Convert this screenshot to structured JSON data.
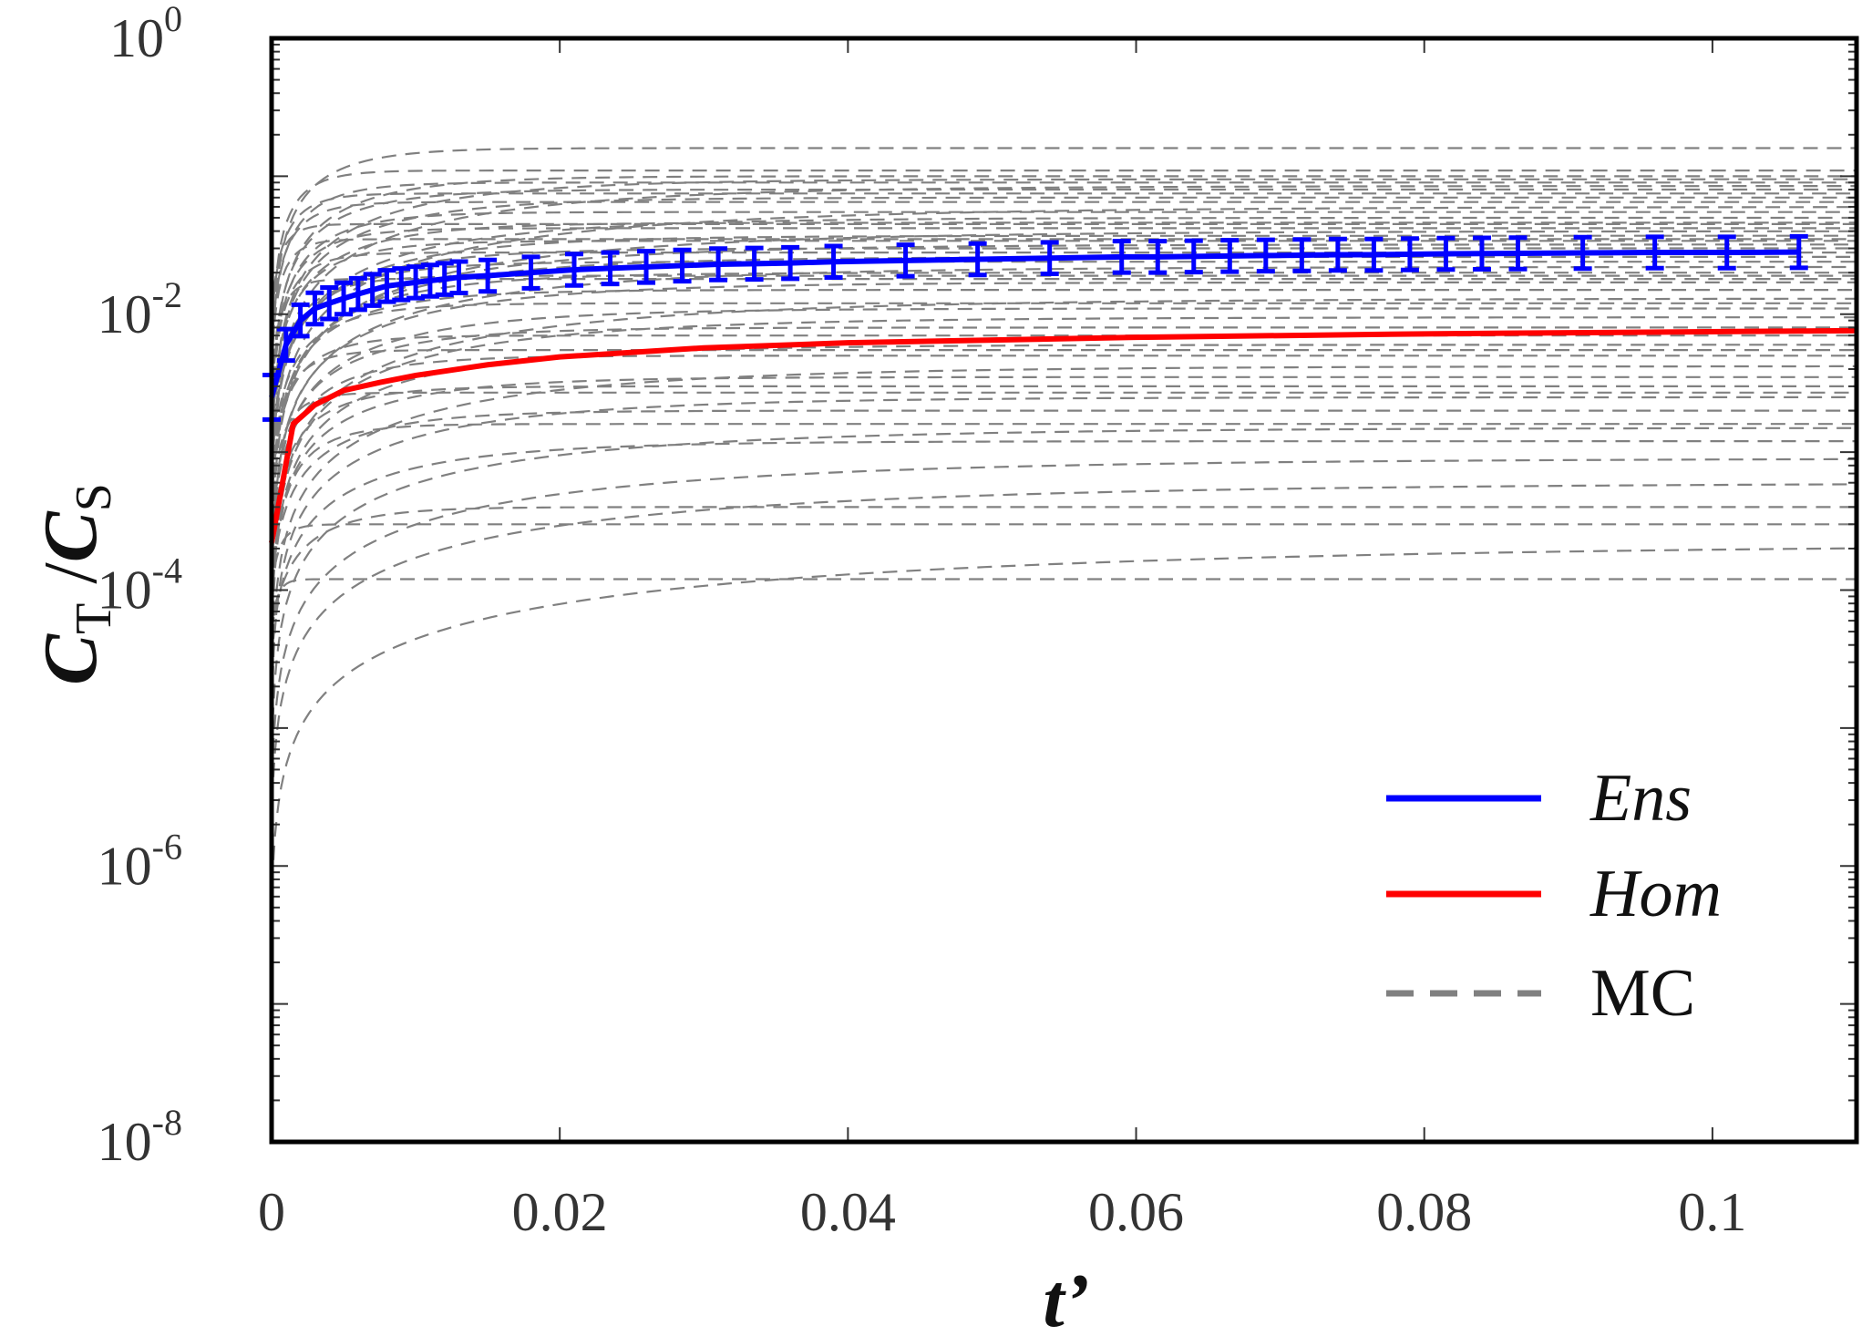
{
  "chart_data": {
    "type": "line",
    "title": "",
    "xlabel": "t’",
    "ylabel": {
      "main": "C",
      "sub1": "T",
      "sep": " /",
      "main2": "C",
      "sub2": "S"
    },
    "xlim": [
      0,
      0.11
    ],
    "ylim": [
      1e-08,
      1
    ],
    "yscale": "log",
    "x_ticks": [
      0,
      0.02,
      0.04,
      0.06,
      0.08,
      0.1
    ],
    "x_tick_labels": [
      "0",
      "0.02",
      "0.04",
      "0.06",
      "0.08",
      "0.1"
    ],
    "y_ticks": [
      {
        "base": "10",
        "exp": "0",
        "value": 1
      },
      {
        "base": "10",
        "exp": "-2",
        "value": 0.01
      },
      {
        "base": "10",
        "exp": "-4",
        "value": 0.0001
      },
      {
        "base": "10",
        "exp": "-6",
        "value": 1e-06
      },
      {
        "base": "10",
        "exp": "-8",
        "value": 1e-08
      }
    ],
    "legend_position": "bottom-right",
    "legend": [
      {
        "label": "Ens",
        "color": "#0000ff",
        "style": "solid"
      },
      {
        "label": "Hom",
        "color": "#ff0000",
        "style": "solid"
      },
      {
        "label": "MC",
        "color": "#808080",
        "style": "dashed"
      }
    ],
    "series": [
      {
        "name": "Ens",
        "color": "#0000ff",
        "error_factor": 1.3,
        "x": [
          0,
          0.001,
          0.002,
          0.003,
          0.004,
          0.005,
          0.006,
          0.007,
          0.008,
          0.009,
          0.01,
          0.011,
          0.012,
          0.013,
          0.015,
          0.018,
          0.021,
          0.0235,
          0.026,
          0.0285,
          0.031,
          0.0335,
          0.036,
          0.039,
          0.044,
          0.049,
          0.054,
          0.059,
          0.0615,
          0.064,
          0.0665,
          0.069,
          0.0715,
          0.074,
          0.0765,
          0.079,
          0.0815,
          0.084,
          0.0865,
          0.091,
          0.096,
          0.101,
          0.106
        ],
        "y": [
          0.0025,
          0.006,
          0.009,
          0.011,
          0.012,
          0.013,
          0.014,
          0.015,
          0.016,
          0.0165,
          0.017,
          0.0175,
          0.018,
          0.0185,
          0.019,
          0.02,
          0.021,
          0.0215,
          0.022,
          0.0225,
          0.023,
          0.0232,
          0.0235,
          0.024,
          0.0245,
          0.025,
          0.0255,
          0.026,
          0.026,
          0.0262,
          0.0264,
          0.0266,
          0.0268,
          0.027,
          0.027,
          0.0272,
          0.0274,
          0.0275,
          0.0276,
          0.0278,
          0.028,
          0.028,
          0.0282
        ]
      },
      {
        "name": "Hom",
        "color": "#ff0000",
        "x": [
          0,
          0.0015,
          0.003,
          0.005,
          0.0075,
          0.01,
          0.015,
          0.02,
          0.03,
          0.04,
          0.06,
          0.08,
          0.11
        ],
        "y": [
          0.00022,
          0.0016,
          0.0022,
          0.0028,
          0.0032,
          0.0036,
          0.0043,
          0.0049,
          0.0057,
          0.0062,
          0.0068,
          0.0072,
          0.0076
        ]
      },
      {
        "name": "MC",
        "color": "#808080",
        "model": "y = y0 + (ymax - y0) * (1 - exp(-t / tau))",
        "curves": [
          [
            0.16,
            0.004,
            0.002
          ],
          [
            0.11,
            0.002,
            0.003
          ],
          [
            0.1,
            0.006,
            0.001
          ],
          [
            0.095,
            0.01,
            0.0005
          ],
          [
            0.09,
            0.003,
            0.004
          ],
          [
            0.085,
            0.015,
            0.0003
          ],
          [
            0.08,
            0.005,
            0.002
          ],
          [
            0.07,
            0.008,
            0.0008
          ],
          [
            0.065,
            0.002,
            0.005
          ],
          [
            0.06,
            0.02,
            0.0002
          ],
          [
            0.055,
            0.004,
            0.001
          ],
          [
            0.05,
            0.012,
            0.0004
          ],
          [
            0.046,
            0.006,
            0.0015
          ],
          [
            0.042,
            0.003,
            0.002
          ],
          [
            0.04,
            0.018,
            0.0001
          ],
          [
            0.037,
            0.009,
            0.0006
          ],
          [
            0.034,
            0.004,
            0.0009
          ],
          [
            0.032,
            0.014,
            0.0003
          ],
          [
            0.03,
            0.007,
            0.0007
          ],
          [
            0.028,
            0.002,
            0.001
          ],
          [
            0.026,
            0.011,
            0.0002
          ],
          [
            0.024,
            0.005,
            0.0005
          ],
          [
            0.022,
            0.016,
            8e-05
          ],
          [
            0.02,
            0.008,
            0.0003
          ],
          [
            0.019,
            0.003,
            0.0008
          ],
          [
            0.017,
            0.012,
            0.0001
          ],
          [
            0.015,
            0.006,
            0.0004
          ],
          [
            0.013,
            0.02,
            5e-05
          ],
          [
            0.012,
            0.004,
            0.0006
          ],
          [
            0.011,
            0.01,
            0.0002
          ],
          [
            0.0095,
            0.015,
            3e-05
          ],
          [
            0.008,
            0.007,
            0.0002
          ],
          [
            0.007,
            0.003,
            0.0004
          ],
          [
            0.006,
            0.012,
            5e-05
          ],
          [
            0.005,
            0.005,
            0.0002
          ],
          [
            0.0042,
            0.018,
            2e-05
          ],
          [
            0.0035,
            0.008,
            0.0001
          ],
          [
            0.003,
            0.004,
            0.0002
          ],
          [
            0.0025,
            0.014,
            1e-05
          ],
          [
            0.002,
            0.006,
            0.0001
          ],
          [
            0.0015,
            0.02,
            5e-06
          ],
          [
            0.0012,
            0.01,
            3e-05
          ],
          [
            0.0009,
            0.025,
            3e-06
          ],
          [
            0.0006,
            0.03,
            2e-06
          ],
          [
            0.0004,
            0.004,
            5e-05
          ],
          [
            0.0003,
            0.0008,
            0.0001
          ],
          [
            0.00012,
            0.0005,
            5e-05
          ],
          [
            0.00022,
            0.045,
            5e-07
          ],
          [
            0.018,
            0.001,
            0.002
          ],
          [
            0.045,
            0.001,
            0.01
          ],
          [
            0.0027,
            0.0015,
            0.0003
          ],
          [
            0.0055,
            0.002,
            0.0006
          ],
          [
            0.035,
            0.0012,
            0.004
          ],
          [
            0.075,
            0.0018,
            0.008
          ],
          [
            0.0016,
            0.003,
            2e-05
          ]
        ]
      }
    ]
  }
}
